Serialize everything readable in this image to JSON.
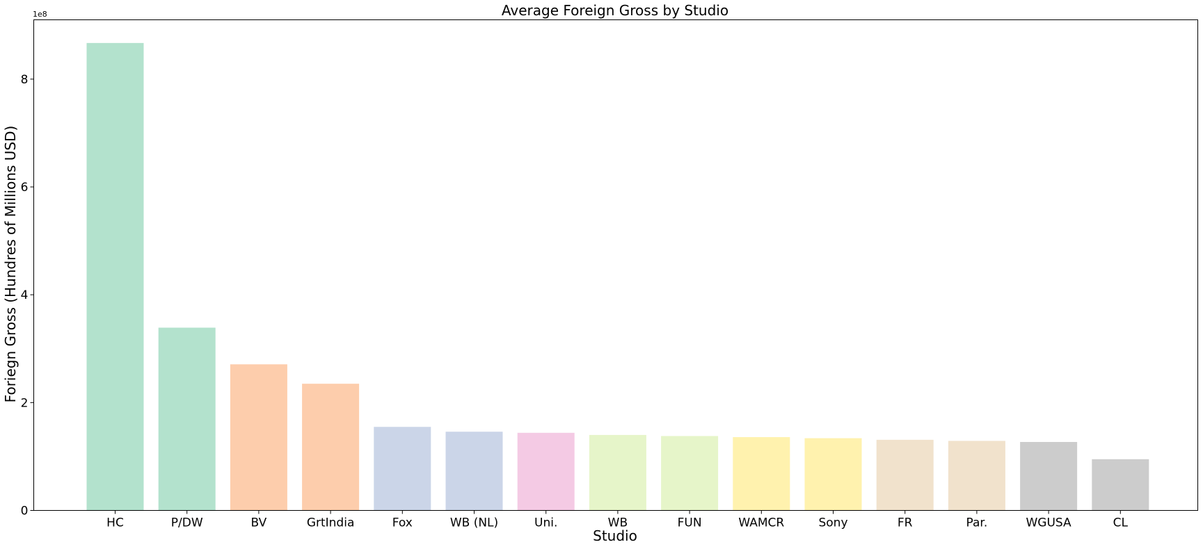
{
  "chart_data": {
    "type": "bar",
    "title": "Average Foreign Gross by Studio",
    "xlabel": "Studio",
    "ylabel": "Foriegn Gross (Hundres of Millions USD)",
    "y_offset_label": "1e8",
    "ylim": [
      0,
      910000000
    ],
    "yticks": [
      0,
      200000000,
      400000000,
      600000000,
      800000000
    ],
    "ytick_labels": [
      "0",
      "2",
      "4",
      "6",
      "8"
    ],
    "grid": false,
    "categories": [
      "HC",
      "P/DW",
      "BV",
      "GrtIndia",
      "Fox",
      "WB (NL)",
      "Uni.",
      "WB",
      "FUN",
      "WAMCR",
      "Sony",
      "FR",
      "Par.",
      "WGUSA",
      "CL"
    ],
    "values": [
      867000000,
      339000000,
      271000000,
      235000000,
      155000000,
      146000000,
      144000000,
      140000000,
      138000000,
      136000000,
      134000000,
      131000000,
      129000000,
      127000000,
      95000000
    ],
    "colors": [
      "#b3e2cd",
      "#b3e2cd",
      "#fdcdac",
      "#fdcdac",
      "#cbd5e8",
      "#cbd5e8",
      "#f4cae4",
      "#e6f5c9",
      "#e6f5c9",
      "#fff2ae",
      "#fff2ae",
      "#f1e2cc",
      "#f1e2cc",
      "#cccccc",
      "#cccccc"
    ]
  }
}
